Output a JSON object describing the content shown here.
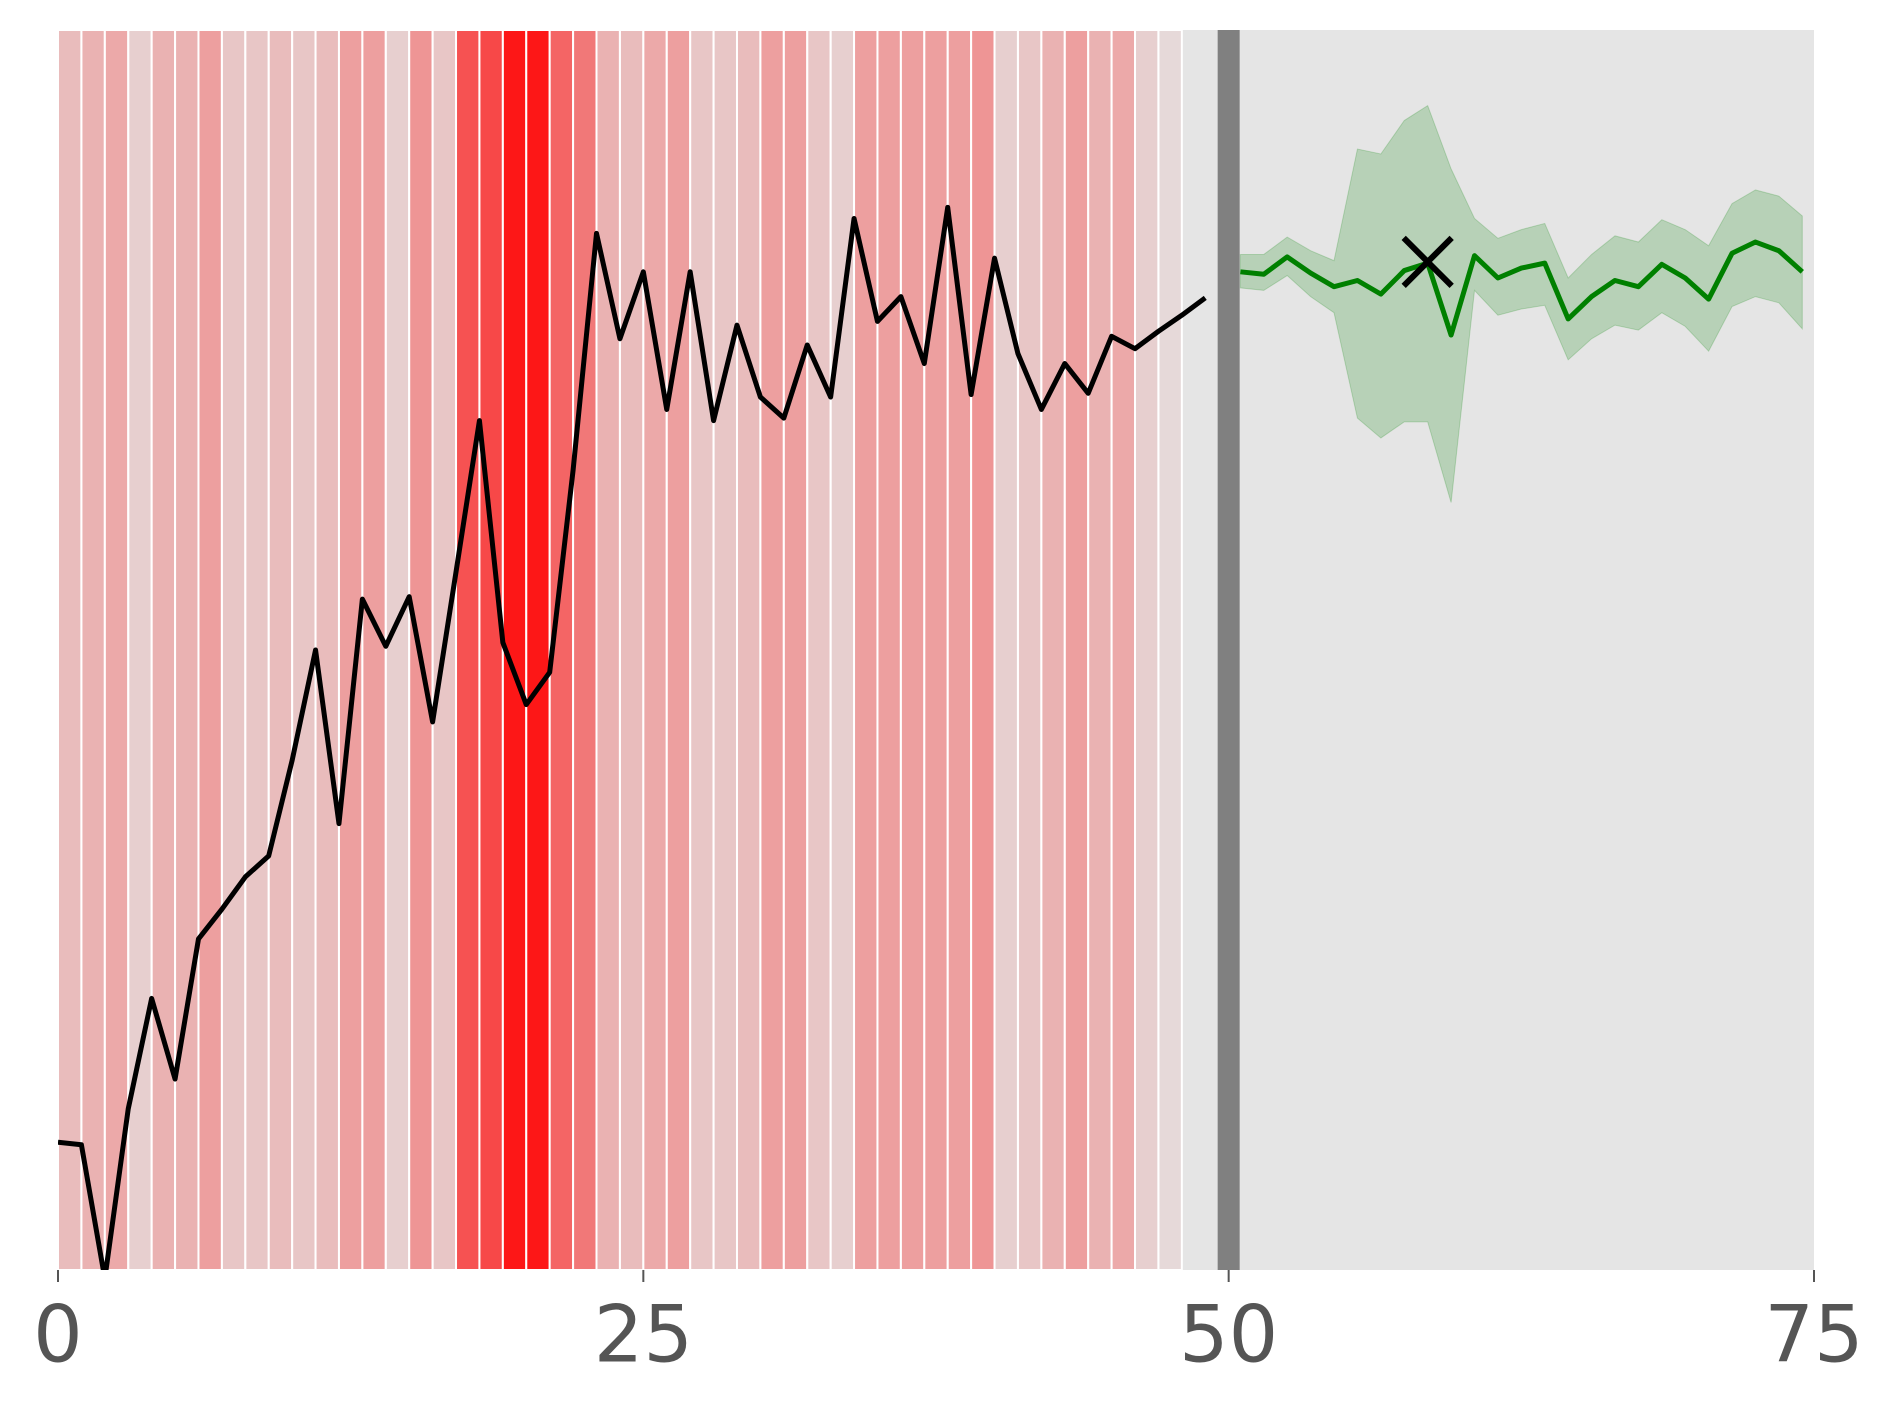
{
  "chart_data": {
    "type": "line",
    "xlim": [
      0,
      75
    ],
    "xticks": [
      0,
      25,
      50,
      75
    ],
    "ylim": [
      0,
      100
    ],
    "background": "#e5e5e5",
    "cutoff": 50,
    "cutoff_color": "#808080",
    "attention_color": "#ff0000",
    "attention": [
      0.15,
      0.2,
      0.25,
      0.05,
      0.2,
      0.2,
      0.3,
      0.1,
      0.1,
      0.15,
      0.1,
      0.15,
      0.3,
      0.3,
      0.05,
      0.35,
      0.1,
      0.7,
      0.75,
      1.0,
      1.0,
      0.6,
      0.5,
      0.2,
      0.15,
      0.25,
      0.3,
      0.1,
      0.1,
      0.15,
      0.3,
      0.3,
      0.1,
      0.05,
      0.3,
      0.3,
      0.3,
      0.3,
      0.3,
      0.35,
      0.05,
      0.1,
      0.2,
      0.3,
      0.2,
      0.25,
      0.05,
      0.0
    ],
    "series": [
      {
        "color": "#000000",
        "x": [
          0,
          1,
          2,
          3,
          4,
          5,
          6,
          7,
          8,
          9,
          10,
          11,
          12,
          13,
          14,
          15,
          16,
          17,
          18,
          19,
          20,
          21,
          22,
          23,
          24,
          25,
          26,
          27,
          28,
          29,
          30,
          31,
          32,
          33,
          34,
          35,
          36,
          37,
          38,
          39,
          40,
          41,
          42,
          43,
          44,
          45,
          46,
          47,
          48,
          49
        ],
        "values": [
          10.3,
          10.1,
          -0.7,
          13.0,
          21.9,
          15.4,
          26.7,
          29.1,
          31.7,
          33.4,
          41.1,
          50.0,
          36.0,
          54.1,
          50.3,
          54.3,
          44.2,
          56.3,
          68.5,
          50.6,
          45.6,
          48.2,
          64.5,
          83.6,
          75.1,
          80.5,
          69.4,
          80.5,
          68.5,
          76.2,
          70.4,
          68.7,
          74.6,
          70.4,
          84.8,
          76.5,
          78.5,
          73.1,
          85.7,
          70.6,
          81.6,
          73.9,
          69.4,
          73.1,
          70.7,
          75.3,
          74.3,
          75.7,
          77.0,
          78.4
        ]
      },
      {
        "color": "#008000",
        "band_color": "#008000",
        "x": [
          50.5,
          51.5,
          52.5,
          53.5,
          54.5,
          55.5,
          56.5,
          57.5,
          58.5,
          59.5,
          60.5,
          61.5,
          62.5,
          63.5,
          64.5,
          65.5,
          66.5,
          67.5,
          68.5,
          69.5,
          70.5,
          71.5,
          72.5,
          73.5,
          74.5
        ],
        "values": [
          80.5,
          80.3,
          81.7,
          80.4,
          79.3,
          79.8,
          78.7,
          80.6,
          81.2,
          75.4,
          81.8,
          80.0,
          80.8,
          81.2,
          76.7,
          78.5,
          79.8,
          79.3,
          81.1,
          80.0,
          78.3,
          82.0,
          82.9,
          82.2,
          80.5
        ],
        "upper": [
          81.9,
          81.9,
          83.3,
          82.2,
          81.4,
          90.4,
          90.0,
          92.7,
          93.9,
          88.8,
          84.8,
          83.2,
          83.9,
          84.4,
          80.0,
          81.9,
          83.4,
          82.9,
          84.7,
          83.9,
          82.6,
          86.0,
          87.1,
          86.6,
          85.0
        ],
        "lower": [
          79.2,
          79.0,
          80.2,
          78.5,
          77.2,
          68.7,
          67.1,
          68.4,
          68.4,
          61.9,
          79.0,
          77.0,
          77.5,
          77.8,
          73.4,
          75.1,
          76.2,
          75.8,
          77.2,
          76.1,
          74.1,
          77.7,
          78.5,
          78.0,
          75.9
        ]
      }
    ],
    "marker": {
      "x": 58.5,
      "y": 81.3,
      "color": "#000000"
    }
  }
}
